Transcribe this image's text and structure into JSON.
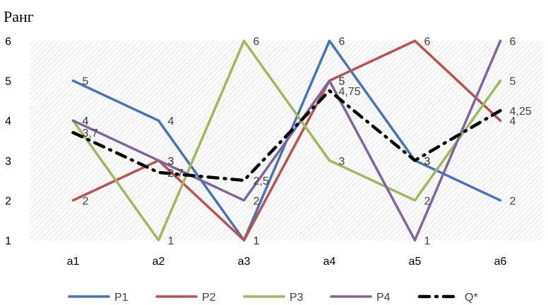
{
  "chart_data": {
    "type": "line",
    "title": "",
    "ylabel": "Ранг",
    "xlabel": "",
    "ylim": [
      1,
      6
    ],
    "yticks": [
      "1",
      "2",
      "3",
      "4",
      "5",
      "6"
    ],
    "categories": [
      "a1",
      "a2",
      "a3",
      "a4",
      "a5",
      "a6"
    ],
    "grid": "hatched background",
    "legend_position": "bottom",
    "series": [
      {
        "name": "P1",
        "color": "#4472C4",
        "style": "solid",
        "values": [
          5,
          4,
          1,
          6,
          3,
          2
        ],
        "labels": [
          "5",
          "4",
          "1",
          "6",
          "3",
          "2"
        ]
      },
      {
        "name": "P2",
        "color": "#C0504D",
        "style": "solid",
        "values": [
          2,
          3,
          1,
          5,
          6,
          4
        ],
        "labels": [
          "2",
          "3",
          "1",
          "5",
          "6",
          "4"
        ]
      },
      {
        "name": "P3",
        "color": "#9BBB59",
        "style": "solid",
        "values": [
          4,
          1,
          6,
          3,
          2,
          5
        ],
        "labels": [
          "4",
          "1",
          "6",
          "3",
          "2",
          "5"
        ]
      },
      {
        "name": "P4",
        "color": "#8064A2",
        "style": "solid",
        "values": [
          4,
          3,
          2,
          5,
          1,
          6
        ],
        "labels": [
          "4",
          "3",
          "2",
          "5",
          "1",
          "6"
        ]
      },
      {
        "name": "Q*",
        "color": "#000000",
        "style": "dashdot",
        "values": [
          3.7,
          2.7,
          2.5,
          4.75,
          3,
          4.25
        ],
        "labels": [
          "3,7",
          "2,7",
          "2,5",
          "4,75",
          "3",
          "4,25"
        ]
      }
    ]
  }
}
